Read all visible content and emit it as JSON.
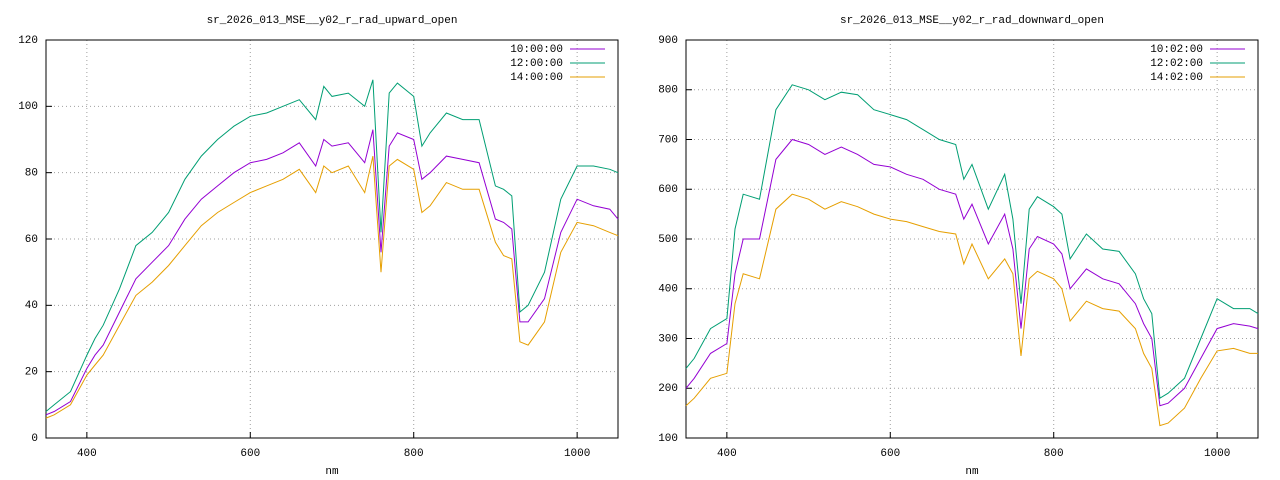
{
  "chart_data": [
    {
      "type": "line",
      "title": "sr_2026_013_MSE__y02_r_rad_upward_open",
      "x_label": "nm",
      "x": [
        350,
        360,
        380,
        400,
        410,
        420,
        440,
        460,
        480,
        500,
        520,
        540,
        560,
        580,
        600,
        620,
        640,
        660,
        680,
        690,
        700,
        720,
        740,
        750,
        760,
        770,
        780,
        800,
        810,
        820,
        840,
        860,
        880,
        900,
        910,
        920,
        930,
        940,
        960,
        980,
        1000,
        1020,
        1040,
        1050
      ],
      "xlim": [
        350,
        1050
      ],
      "xticks": [
        400,
        600,
        800,
        1000
      ],
      "ylim": [
        0,
        120
      ],
      "yticks": [
        0,
        20,
        40,
        60,
        80,
        100,
        120
      ],
      "grid": true,
      "legend": "top-right",
      "series": [
        {
          "name": "10:00:00",
          "color": "#9400d3",
          "values": [
            7,
            8,
            11,
            21,
            25,
            28,
            38,
            48,
            53,
            58,
            66,
            72,
            76,
            80,
            83,
            84,
            86,
            89,
            82,
            90,
            88,
            89,
            83,
            93,
            56,
            88,
            92,
            90,
            78,
            80,
            85,
            84,
            83,
            66,
            65,
            63,
            35,
            35,
            42,
            62,
            72,
            70,
            69,
            66
          ]
        },
        {
          "name": "12:00:00",
          "color": "#009e73",
          "values": [
            8,
            10,
            14,
            25,
            30,
            34,
            45,
            58,
            62,
            68,
            78,
            85,
            90,
            94,
            97,
            98,
            100,
            102,
            96,
            106,
            103,
            104,
            100,
            108,
            62,
            104,
            107,
            103,
            88,
            92,
            98,
            96,
            96,
            76,
            75,
            73,
            38,
            40,
            50,
            72,
            82,
            82,
            81,
            80
          ]
        },
        {
          "name": "14:00:00",
          "color": "#e69f00",
          "values": [
            6,
            7,
            10,
            19,
            22,
            25,
            34,
            43,
            47,
            52,
            58,
            64,
            68,
            71,
            74,
            76,
            78,
            81,
            74,
            82,
            80,
            82,
            74,
            85,
            50,
            82,
            84,
            81,
            68,
            70,
            77,
            75,
            75,
            59,
            55,
            54,
            29,
            28,
            35,
            56,
            65,
            64,
            62,
            61
          ]
        }
      ]
    },
    {
      "type": "line",
      "title": "sr_2026_013_MSE__y02_r_rad_downward_open",
      "x_label": "nm",
      "x": [
        350,
        360,
        380,
        400,
        410,
        420,
        440,
        460,
        480,
        500,
        520,
        540,
        560,
        580,
        600,
        620,
        640,
        660,
        680,
        690,
        700,
        720,
        740,
        750,
        760,
        770,
        780,
        800,
        810,
        820,
        840,
        860,
        880,
        900,
        910,
        920,
        930,
        940,
        960,
        980,
        1000,
        1020,
        1040,
        1050
      ],
      "xlim": [
        350,
        1050
      ],
      "xticks": [
        400,
        600,
        800,
        1000
      ],
      "ylim": [
        100,
        900
      ],
      "yticks": [
        100,
        200,
        300,
        400,
        500,
        600,
        700,
        800,
        900
      ],
      "grid": true,
      "legend": "top-right",
      "series": [
        {
          "name": "10:02:00",
          "color": "#9400d3",
          "values": [
            200,
            220,
            270,
            290,
            430,
            500,
            500,
            660,
            700,
            690,
            670,
            685,
            670,
            650,
            645,
            630,
            620,
            600,
            590,
            540,
            570,
            490,
            550,
            480,
            320,
            480,
            505,
            490,
            470,
            400,
            440,
            420,
            410,
            370,
            330,
            300,
            165,
            170,
            200,
            260,
            320,
            330,
            325,
            320
          ]
        },
        {
          "name": "12:02:00",
          "color": "#009e73",
          "values": [
            240,
            260,
            320,
            340,
            520,
            590,
            580,
            760,
            810,
            800,
            780,
            795,
            790,
            760,
            750,
            740,
            720,
            700,
            690,
            620,
            650,
            560,
            630,
            540,
            370,
            560,
            585,
            565,
            550,
            460,
            510,
            480,
            475,
            430,
            380,
            350,
            180,
            190,
            220,
            300,
            380,
            360,
            360,
            350
          ]
        },
        {
          "name": "14:02:00",
          "color": "#e69f00",
          "values": [
            165,
            180,
            220,
            230,
            370,
            430,
            420,
            560,
            590,
            580,
            560,
            575,
            565,
            550,
            540,
            535,
            525,
            515,
            510,
            450,
            490,
            420,
            460,
            430,
            265,
            420,
            435,
            420,
            400,
            335,
            375,
            360,
            355,
            320,
            270,
            240,
            125,
            130,
            160,
            220,
            275,
            280,
            270,
            270
          ]
        }
      ]
    }
  ]
}
